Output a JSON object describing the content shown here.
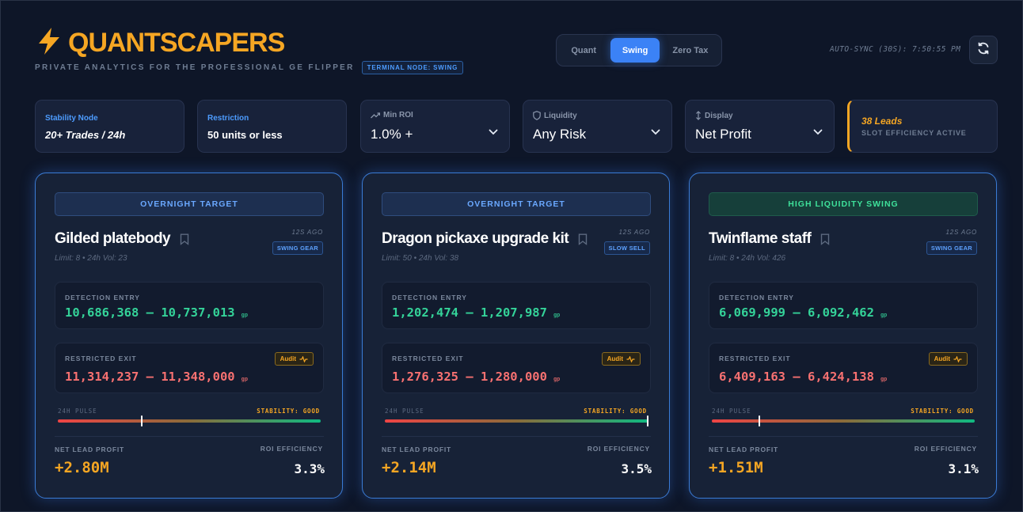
{
  "header": {
    "title": "QUANTSCAPERS",
    "subtitle": "PRIVATE ANALYTICS FOR THE PROFESSIONAL GE FLIPPER",
    "node_badge": "TERMINAL NODE: SWING",
    "brand_color": "#f5a623",
    "logo_icon": "lightning-bolt-icon"
  },
  "modes": {
    "options": [
      "Quant",
      "Swing",
      "Zero Tax"
    ],
    "selected": "Swing"
  },
  "sync": {
    "text": "AUTO-SYNC (30S): 7:50:55 PM",
    "refresh_icon": "refresh-icon"
  },
  "filters": {
    "stability": {
      "label": "Stability Node",
      "value": "20+ Trades / 24h"
    },
    "restriction": {
      "label": "Restriction",
      "value": "50 units or less"
    },
    "min_roi": {
      "label": "Min ROI",
      "value": "1.0% +",
      "icon": "trend-up-icon"
    },
    "liquidity": {
      "label": "Liquidity",
      "value": "Any Risk",
      "icon": "shield-icon"
    },
    "display": {
      "label": "Display",
      "value": "Net Profit",
      "icon": "sort-arrows-icon"
    },
    "leads": {
      "count": "38 Leads",
      "status": "SLOT EFFICIENCY ACTIVE"
    }
  },
  "cards": [
    {
      "tag": "OVERNIGHT TARGET",
      "tag_color": "blue",
      "name": "Gilded platebody",
      "ago": "12S AGO",
      "category": "SWING GEAR",
      "meta": "Limit: 8 • 24h Vol: 23",
      "entry_label": "DETECTION ENTRY",
      "entry_range": "10,686,368 – 10,737,013",
      "exit_label": "RESTRICTED EXIT",
      "exit_range": "11,314,237 – 11,348,000",
      "currency": "gp",
      "audit_label": "Audit",
      "pulse_label": "24H PULSE",
      "stability": "STABILITY: GOOD",
      "pulse_position": 0.32,
      "profit_label": "NET LEAD PROFIT",
      "profit": "+2.80M",
      "roi_label": "ROI EFFICIENCY",
      "roi": "3.3%"
    },
    {
      "tag": "OVERNIGHT TARGET",
      "tag_color": "blue",
      "name": "Dragon pickaxe upgrade kit",
      "ago": "12S AGO",
      "category": "SLOW SELL",
      "meta": "Limit: 50 • 24h Vol: 38",
      "entry_label": "DETECTION ENTRY",
      "entry_range": "1,202,474 – 1,207,987",
      "exit_label": "RESTRICTED EXIT",
      "exit_range": "1,276,325 – 1,280,000",
      "currency": "gp",
      "audit_label": "Audit",
      "pulse_label": "24H PULSE",
      "stability": "STABILITY: GOOD",
      "pulse_position": 1.0,
      "profit_label": "NET LEAD PROFIT",
      "profit": "+2.14M",
      "roi_label": "ROI EFFICIENCY",
      "roi": "3.5%"
    },
    {
      "tag": "HIGH LIQUIDITY SWING",
      "tag_color": "green",
      "name": "Twinflame staff",
      "ago": "12S AGO",
      "category": "SWING GEAR",
      "meta": "Limit: 8 • 24h Vol: 426",
      "entry_label": "DETECTION ENTRY",
      "entry_range": "6,069,999 – 6,092,462",
      "exit_label": "RESTRICTED EXIT",
      "exit_range": "6,409,163 – 6,424,138",
      "currency": "gp",
      "audit_label": "Audit",
      "pulse_label": "24H PULSE",
      "stability": "STABILITY: GOOD",
      "pulse_position": 0.18,
      "profit_label": "NET LEAD PROFIT",
      "profit": "+1.51M",
      "roi_label": "ROI EFFICIENCY",
      "roi": "3.1%"
    }
  ]
}
